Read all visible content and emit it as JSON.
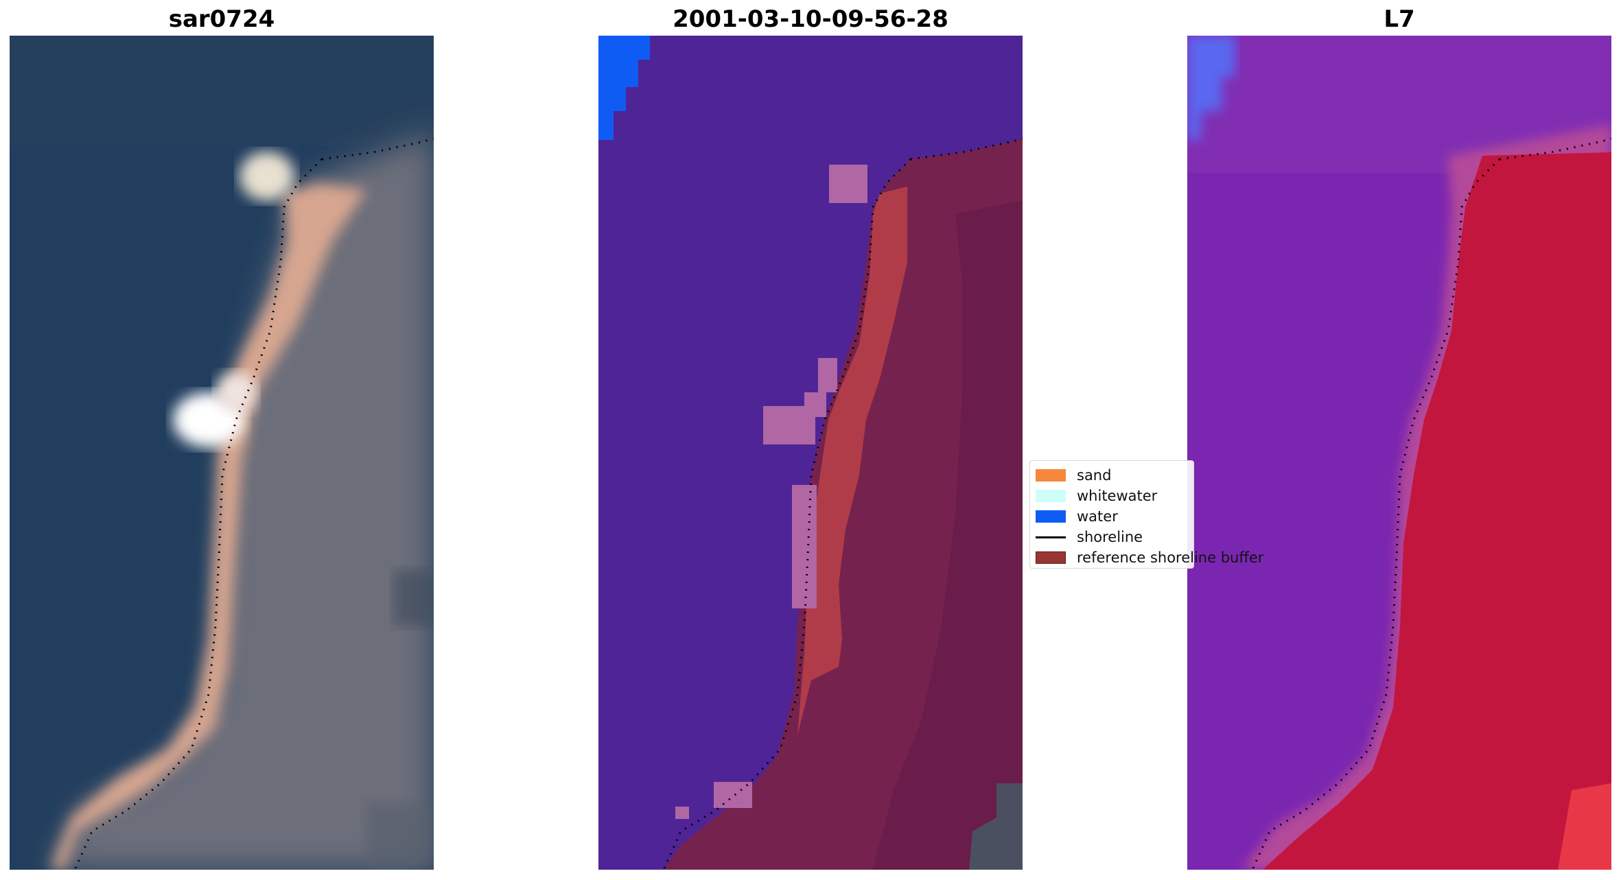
{
  "panels": [
    {
      "title": "sar0724"
    },
    {
      "title": "2001-03-10-09-56-28"
    },
    {
      "title": "L7"
    }
  ],
  "legend": {
    "items": [
      {
        "label": "sand",
        "color": "#f5883d",
        "kind": "patch"
      },
      {
        "label": "whitewater",
        "color": "#cdfff8",
        "kind": "patch"
      },
      {
        "label": "water",
        "color": "#0f5cf5",
        "kind": "patch"
      },
      {
        "label": "shoreline",
        "color": "#000000",
        "kind": "line"
      },
      {
        "label": "reference shoreline buffer",
        "color": "#9a3535",
        "kind": "patch"
      }
    ]
  },
  "colors": {
    "sea_rgb": "#213e5e",
    "land_rgb": "#6c6e7a",
    "beach_rgb": "#d7a690",
    "classified_water": "#4f2496",
    "classified_land": "#76224e",
    "classified_buffer": "#b03c4a",
    "classified_pink": "#b067a4",
    "false_color_sea": "#7b26b0",
    "false_color_land": "#c3163f"
  }
}
